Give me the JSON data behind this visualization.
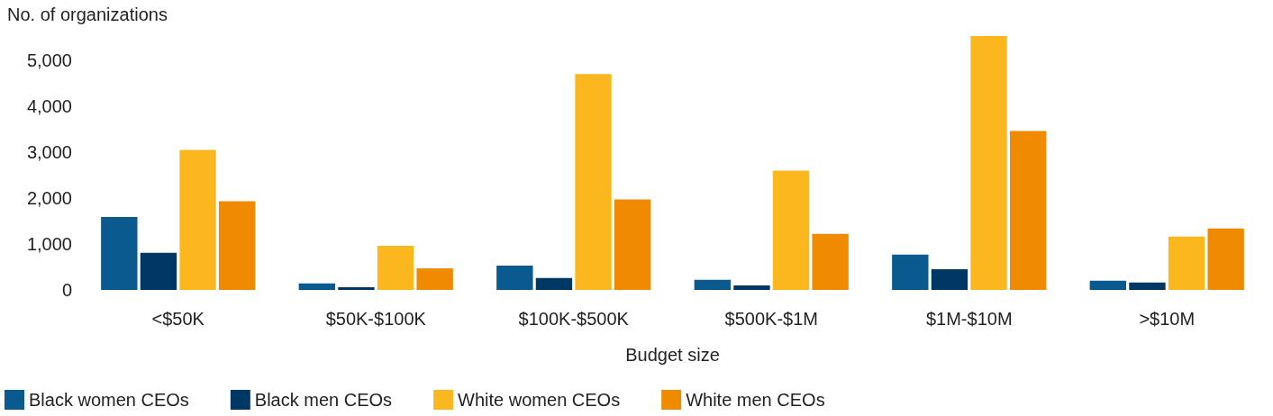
{
  "chart_data": {
    "type": "bar",
    "xlabel": "Budget size",
    "ylabel": "No. of organizations",
    "categories": [
      "<$50K",
      "$50K-$100K",
      "$100K-$500K",
      "$500K-$1M",
      "$1M-$10M",
      ">$10M"
    ],
    "series": [
      {
        "name": "Black women CEOs",
        "color": "#0b5a8f",
        "values": [
          1590,
          140,
          530,
          220,
          770,
          200
        ]
      },
      {
        "name": "Black men CEOs",
        "color": "#003865",
        "values": [
          810,
          60,
          260,
          100,
          450,
          160
        ]
      },
      {
        "name": "White women CEOs",
        "color": "#fdb71e",
        "values": [
          3050,
          960,
          4700,
          2600,
          5530,
          1160
        ]
      },
      {
        "name": "White men CEOs",
        "color": "#f08a00",
        "values": [
          1930,
          470,
          1970,
          1220,
          3460,
          1340
        ]
      }
    ],
    "ylim": [
      0,
      5530
    ],
    "yticks": [
      0,
      {
        "value": 1000,
        "label": "1,000"
      },
      {
        "value": 2000,
        "label": "2,000"
      },
      {
        "value": 3000,
        "label": "3,000"
      },
      {
        "value": 4000,
        "label": "4,000"
      },
      {
        "value": 5000,
        "label": "5,000"
      }
    ],
    "grid": false,
    "legend": "bottom"
  }
}
